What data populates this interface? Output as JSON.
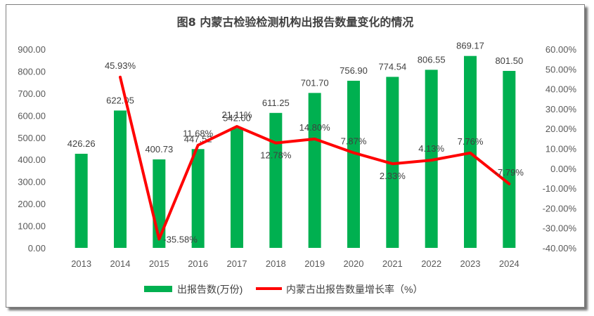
{
  "chart_data": {
    "type": "bar+line",
    "title": "图8  内蒙古检验检测机构出报告数量变化的情况",
    "categories": [
      "2013",
      "2014",
      "2015",
      "2016",
      "2017",
      "2018",
      "2019",
      "2020",
      "2021",
      "2022",
      "2023",
      "2024"
    ],
    "series": [
      {
        "name": "出报告数(万份)",
        "type": "bar",
        "axis": "left",
        "color": "#00b050",
        "values": [
          426.26,
          622.05,
          400.73,
          447.52,
          542.0,
          611.25,
          701.7,
          756.9,
          774.54,
          806.55,
          869.17,
          801.5
        ],
        "labels": [
          "426.26",
          "622.05",
          "400.73",
          "447.52",
          "542.00",
          "611.25",
          "701.70",
          "756.90",
          "774.54",
          "806.55",
          "869.17",
          "801.50"
        ]
      },
      {
        "name": "内蒙古出报告数量增长率（%）",
        "type": "line",
        "axis": "right",
        "color": "#ff0000",
        "values": [
          null,
          45.93,
          -35.58,
          11.68,
          21.11,
          12.78,
          14.8,
          7.87,
          2.33,
          4.13,
          7.76,
          -7.79
        ],
        "labels": [
          "",
          "45.93%",
          "-35.58%",
          "11.68%",
          "21.11%",
          "12.78%",
          "14.80%",
          "7.87%",
          "2.33%",
          "4.13%",
          "7.76%",
          "-7.79%"
        ]
      }
    ],
    "y_left": {
      "min": 0,
      "max": 900,
      "step": 100,
      "tick_labels": [
        "0.00",
        "100.00",
        "200.00",
        "300.00",
        "400.00",
        "500.00",
        "600.00",
        "700.00",
        "800.00",
        "900.00"
      ]
    },
    "y_right": {
      "min": -40,
      "max": 60,
      "step": 10,
      "tick_labels": [
        "-40.00%",
        "-30.00%",
        "-20.00%",
        "-10.00%",
        "0.00%",
        "10.00%",
        "20.00%",
        "30.00%",
        "40.00%",
        "50.00%",
        "60.00%"
      ]
    },
    "legend_position": "bottom",
    "grid": false
  }
}
